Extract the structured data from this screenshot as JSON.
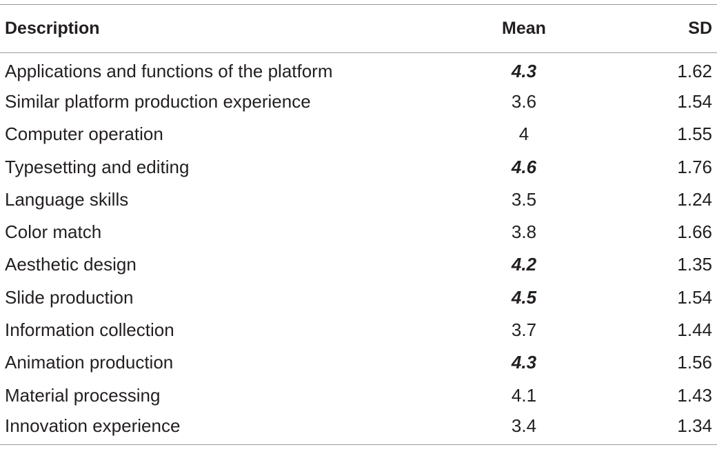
{
  "table": {
    "headers": {
      "description": "Description",
      "mean": "Mean",
      "sd": "SD"
    },
    "rows": [
      {
        "description": "Applications and functions of the platform",
        "mean": "4.3",
        "sd": "1.62",
        "highlighted": true
      },
      {
        "description": "Similar platform production experience",
        "mean": "3.6",
        "sd": "1.54",
        "highlighted": false
      },
      {
        "description": "Computer operation",
        "mean": "4",
        "sd": "1.55",
        "highlighted": false
      },
      {
        "description": "Typesetting and editing",
        "mean": "4.6",
        "sd": "1.76",
        "highlighted": true
      },
      {
        "description": "Language skills",
        "mean": "3.5",
        "sd": "1.24",
        "highlighted": false
      },
      {
        "description": "Color match",
        "mean": "3.8",
        "sd": "1.66",
        "highlighted": false
      },
      {
        "description": "Aesthetic design",
        "mean": "4.2",
        "sd": "1.35",
        "highlighted": true
      },
      {
        "description": "Slide production",
        "mean": "4.5",
        "sd": "1.54",
        "highlighted": true
      },
      {
        "description": "Information collection",
        "mean": "3.7",
        "sd": "1.44",
        "highlighted": false
      },
      {
        "description": "Animation production",
        "mean": "4.3",
        "sd": "1.56",
        "highlighted": true
      },
      {
        "description": "Material processing",
        "mean": "4.1",
        "sd": "1.43",
        "highlighted": false
      },
      {
        "description": "Innovation experience",
        "mean": "3.4",
        "sd": "1.34",
        "highlighted": false
      }
    ]
  },
  "colors": {
    "text": "#231f20",
    "rule": "#9a9a9a"
  }
}
